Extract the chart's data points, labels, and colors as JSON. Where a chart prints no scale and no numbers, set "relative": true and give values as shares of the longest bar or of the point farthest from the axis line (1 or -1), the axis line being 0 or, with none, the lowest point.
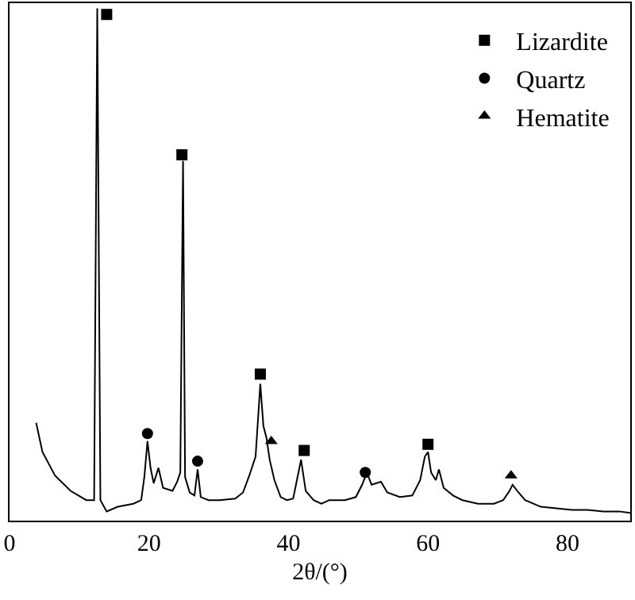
{
  "chart_data": {
    "type": "line",
    "xlabel": "2θ/(°)",
    "relative": true,
    "xlim": [
      0,
      89
    ],
    "xticks": [
      0,
      20,
      40,
      60,
      80
    ],
    "tick_labels": "x",
    "legend": "top right",
    "series": [
      {
        "color": "#000000",
        "line_style": "solid",
        "x": [
          3.82,
          4.72,
          6.52,
          8.76,
          11.01,
          12.13,
          12.58,
          13.03,
          13.93,
          15.51,
          17.75,
          18.88,
          19.33,
          19.78,
          20.22,
          20.67,
          21.35,
          22.02,
          23.37,
          24.04,
          24.49,
          24.88,
          25.17,
          25.84,
          26.52,
          26.97,
          27.42,
          28.54,
          30.11,
          32.36,
          33.48,
          34.38,
          35.28,
          35.96,
          36.4,
          36.85,
          37.3,
          37.98,
          38.88,
          39.78,
          40.67,
          41.8,
          42.47,
          43.6,
          44.72,
          45.84,
          48.09,
          49.66,
          50.56,
          51.24,
          51.91,
          53.26,
          54.16,
          55.96,
          57.75,
          58.88,
          59.55,
          60.0,
          60.45,
          61.12,
          61.57,
          62.25,
          63.6,
          64.94,
          67.19,
          69.44,
          70.79,
          71.69,
          72.13,
          72.81,
          73.93,
          76.18,
          78.43,
          80.67,
          82.92,
          85.17,
          87.42,
          89.0
        ],
        "values": [
          0.191,
          0.134,
          0.088,
          0.058,
          0.04,
          0.04,
          1.0,
          0.04,
          0.018,
          0.027,
          0.033,
          0.04,
          0.085,
          0.155,
          0.103,
          0.073,
          0.103,
          0.064,
          0.058,
          0.076,
          0.094,
          0.702,
          0.085,
          0.055,
          0.049,
          0.1,
          0.046,
          0.04,
          0.04,
          0.043,
          0.055,
          0.088,
          0.125,
          0.267,
          0.185,
          0.161,
          0.119,
          0.079,
          0.046,
          0.04,
          0.043,
          0.119,
          0.058,
          0.04,
          0.033,
          0.04,
          0.04,
          0.046,
          0.07,
          0.094,
          0.07,
          0.076,
          0.055,
          0.046,
          0.049,
          0.079,
          0.125,
          0.134,
          0.094,
          0.079,
          0.1,
          0.064,
          0.049,
          0.04,
          0.033,
          0.033,
          0.04,
          0.058,
          0.07,
          0.058,
          0.04,
          0.027,
          0.024,
          0.021,
          0.021,
          0.018,
          0.018,
          0.015
        ]
      },
      {
        "type": "scatter",
        "name": "Lizardite",
        "color": "#000000",
        "marker": "square",
        "x": [
          13.93,
          24.72,
          35.96,
          42.25,
          60.0
        ],
        "values": [
          0.988,
          0.714,
          0.286,
          0.137,
          0.149
        ]
      },
      {
        "type": "scatter",
        "name": "Quartz",
        "color": "#000000",
        "marker": "circle",
        "x": [
          19.78,
          26.97,
          51.01
        ],
        "values": [
          0.17,
          0.116,
          0.094
        ]
      },
      {
        "type": "scatter",
        "name": "Hematite",
        "color": "#000000",
        "marker": "triangle",
        "x": [
          37.53,
          71.91
        ],
        "values": [
          0.155,
          0.088
        ]
      }
    ]
  }
}
